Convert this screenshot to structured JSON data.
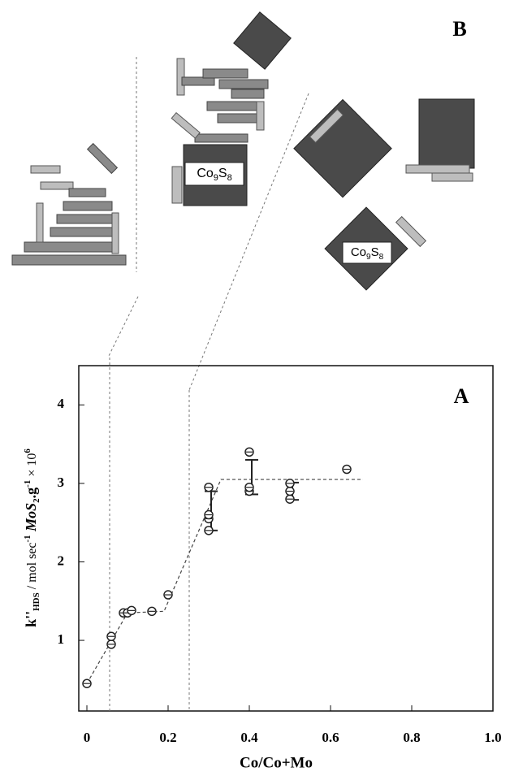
{
  "chart_data": {
    "type": "scatter",
    "panel_a_label": "A",
    "panel_b_label": "B",
    "cluster_labels": [
      [
        "Co",
        "9",
        "S",
        "8"
      ],
      [
        "Co",
        "9",
        "S",
        "8"
      ]
    ],
    "xlabel": "Co/Co+Mo",
    "ylabel_parts": [
      "k''",
      "HDS",
      " / mol sec",
      "-1",
      " MoS",
      "2",
      ".g",
      "-1",
      " × 10",
      "6"
    ],
    "x": [
      0.0,
      0.06,
      0.06,
      0.09,
      0.1,
      0.11,
      0.16,
      0.2,
      0.3,
      0.3,
      0.3,
      0.3,
      0.4,
      0.4,
      0.4,
      0.5,
      0.5,
      0.5,
      0.64
    ],
    "values": [
      0.45,
      0.95,
      1.05,
      1.35,
      1.35,
      1.38,
      1.37,
      1.58,
      2.4,
      2.55,
      2.6,
      2.95,
      2.9,
      2.95,
      3.4,
      2.8,
      2.9,
      3.0,
      3.18
    ],
    "error_bars": [
      {
        "x": 0.3,
        "y": 2.65,
        "err": 0.25
      },
      {
        "x": 0.4,
        "y": 3.08,
        "err": 0.22
      },
      {
        "x": 0.5,
        "y": 2.9,
        "err": 0.11
      }
    ],
    "fit_line": {
      "x": [
        0.0,
        0.1,
        0.19,
        0.33,
        0.68
      ],
      "y": [
        0.45,
        1.35,
        1.37,
        3.05,
        3.05
      ]
    },
    "guide_lines_x": [
      0.056,
      0.252
    ],
    "xlim": [
      -0.02,
      1.0
    ],
    "ylim": [
      0.1,
      4.5
    ],
    "xticks": [
      0,
      0.2,
      0.4,
      0.6,
      0.8,
      {
        "value": 1,
        "label": "1.0"
      }
    ],
    "yticks": [
      1,
      2,
      3,
      4
    ],
    "color": "#222222"
  }
}
